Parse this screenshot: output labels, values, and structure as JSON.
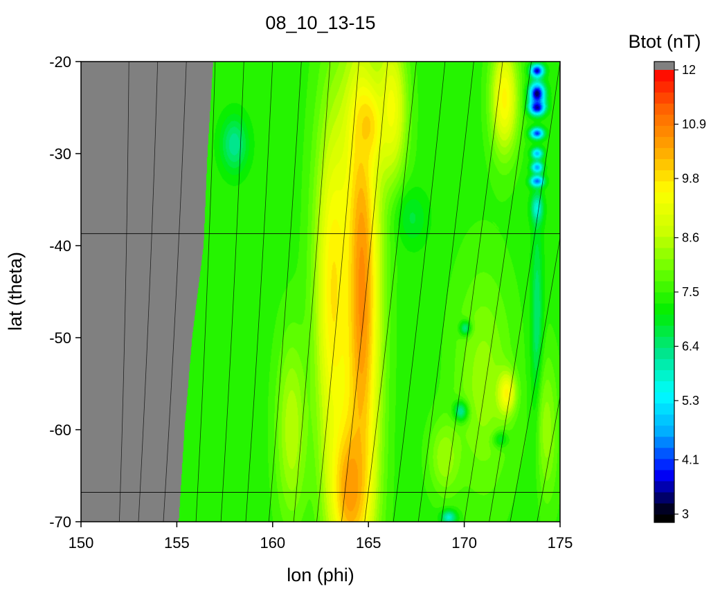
{
  "chart_data": {
    "type": "heatmap",
    "title": "08_10_13-15",
    "xlabel": "lon (phi)",
    "ylabel": "lat (theta)",
    "xlim": [
      150,
      175
    ],
    "ylim": [
      -70,
      -20
    ],
    "x_ticks": [
      150,
      155,
      160,
      165,
      170,
      175
    ],
    "x_tick_labels": [
      "150",
      "155",
      "160",
      "165",
      "170",
      "175"
    ],
    "y_ticks": [
      -20,
      -30,
      -40,
      -50,
      -60,
      -70
    ],
    "y_tick_labels": [
      "-20",
      "-30",
      "-40",
      "-50",
      "-60",
      "-70"
    ],
    "grid": false,
    "colorbar": {
      "title": "Btot (nT)",
      "range": [
        3,
        12
      ],
      "ticks": [
        12,
        10.9,
        9.8,
        8.6,
        7.5,
        6.4,
        5.3,
        4.1,
        3
      ],
      "tick_labels": [
        "12",
        "10.9",
        "9.8",
        "8.6",
        "7.5",
        "6.4",
        "5.3",
        "4.1",
        "3"
      ],
      "stops": [
        "#000000",
        "#0000ff",
        "#00aaff",
        "#00ffff",
        "#00e68c",
        "#00ee00",
        "#66ff00",
        "#ccff00",
        "#ffff00",
        "#ffaa00",
        "#ff6600",
        "#ff0000"
      ],
      "below_color": "#000000",
      "above_color": "#808080"
    },
    "no_data_color": "#808080",
    "no_data_boundary": [
      {
        "lat": -20,
        "lon": 156.9
      },
      {
        "lat": -30,
        "lon": 156.6
      },
      {
        "lat": -40,
        "lon": 156.4
      },
      {
        "lat": -50,
        "lon": 155.8
      },
      {
        "lat": -60,
        "lon": 155.4
      },
      {
        "lat": -70,
        "lon": 155.1
      }
    ],
    "horizontal_lines_lat": [
      -38.7,
      -66.8
    ],
    "contour_lines_lon_at_top": [
      152.5,
      154.0,
      155.5,
      157.0,
      158.5,
      160.0,
      161.5,
      163.0,
      164.5,
      166.0,
      167.5,
      169.0,
      170.5,
      172.0,
      173.5,
      175.0
    ],
    "contour_lines_lon_at_bottom": [
      152.0,
      153.0,
      154.3,
      156.0,
      157.3,
      158.6,
      159.8,
      161.1,
      162.3,
      163.6,
      164.8,
      166.3,
      167.6,
      168.8,
      170.0,
      171.3,
      172.4,
      173.8
    ],
    "background_btot": 7.4,
    "features": [
      {
        "lon": 164.6,
        "lat": -45,
        "dlon": 1.0,
        "dlat": 25,
        "btot": 10.9
      },
      {
        "lon": 164.0,
        "lat": -66,
        "dlon": 1.0,
        "dlat": 8,
        "btot": 10.8
      },
      {
        "lon": 165.0,
        "lat": -27,
        "dlon": 0.8,
        "dlat": 4,
        "btot": 10.1
      },
      {
        "lon": 163.2,
        "lat": -45,
        "dlon": 1.0,
        "dlat": 20,
        "btot": 9.8
      },
      {
        "lon": 166.2,
        "lat": -25,
        "dlon": 0.8,
        "dlat": 8,
        "btot": 9.4
      },
      {
        "lon": 172.1,
        "lat": -24,
        "dlon": 0.7,
        "dlat": 6,
        "btot": 9.6
      },
      {
        "lon": 172.1,
        "lat": -56,
        "dlon": 0.5,
        "dlat": 2.2,
        "btot": 11.2
      },
      {
        "lon": 158.0,
        "lat": -29,
        "dlon": 0.7,
        "dlat": 3,
        "btot": 6.2
      },
      {
        "lon": 167.3,
        "lat": -37,
        "dlon": 0.8,
        "dlat": 3,
        "btot": 6.8
      },
      {
        "lon": 170.1,
        "lat": -49,
        "dlon": 0.3,
        "dlat": 0.8,
        "btot": 4.1
      },
      {
        "lon": 169.9,
        "lat": -58,
        "dlon": 0.4,
        "dlat": 1.1,
        "btot": 3.6
      },
      {
        "lon": 171.8,
        "lat": -61,
        "dlon": 0.4,
        "dlat": 0.9,
        "btot": 5.2
      },
      {
        "lon": 169.2,
        "lat": -69.5,
        "dlon": 0.4,
        "dlat": 0.8,
        "btot": 5.5
      },
      {
        "lon": 173.8,
        "lat": -21,
        "dlon": 0.35,
        "dlat": 0.7,
        "btot": 3.6
      },
      {
        "lon": 173.8,
        "lat": -23.5,
        "dlon": 0.4,
        "dlat": 1.2,
        "btot": 3.2
      },
      {
        "lon": 173.8,
        "lat": -25,
        "dlon": 0.4,
        "dlat": 0.8,
        "btot": 3.4
      },
      {
        "lon": 173.8,
        "lat": -27.8,
        "dlon": 0.35,
        "dlat": 0.6,
        "btot": 4.0
      },
      {
        "lon": 173.8,
        "lat": -30,
        "dlon": 0.3,
        "dlat": 0.6,
        "btot": 4.8
      },
      {
        "lon": 173.8,
        "lat": -31.5,
        "dlon": 0.3,
        "dlat": 0.6,
        "btot": 4.5
      },
      {
        "lon": 173.8,
        "lat": -33,
        "dlon": 0.35,
        "dlat": 0.6,
        "btot": 4.0
      },
      {
        "lon": 173.8,
        "lat": -36,
        "dlon": 0.3,
        "dlat": 1.5,
        "btot": 5.5
      },
      {
        "lon": 173.8,
        "lat": -50,
        "dlon": 0.3,
        "dlat": 12,
        "btot": 6.2
      },
      {
        "lon": 171.0,
        "lat": -55,
        "dlon": 1.5,
        "dlat": 12,
        "btot": 8.3
      },
      {
        "lon": 174.3,
        "lat": -60,
        "dlon": 0.6,
        "dlat": 8,
        "btot": 8.3
      },
      {
        "lon": 169.0,
        "lat": -63,
        "dlon": 0.8,
        "dlat": 4,
        "btot": 8.4
      },
      {
        "lon": 161.0,
        "lat": -60,
        "dlon": 0.8,
        "dlat": 10,
        "btot": 8.6
      }
    ]
  }
}
